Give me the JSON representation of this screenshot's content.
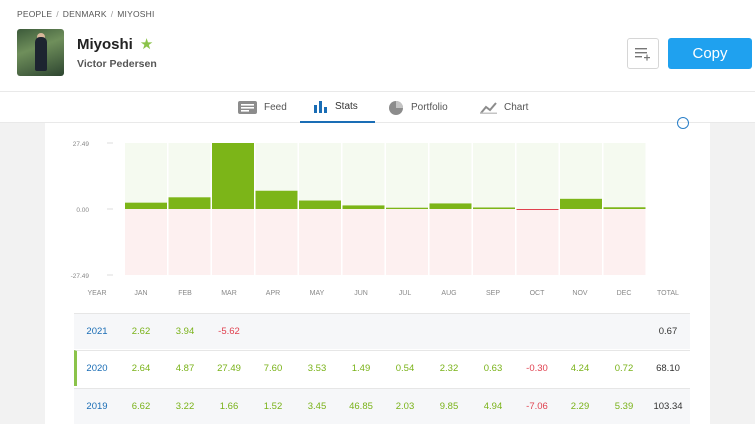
{
  "breadcrumb": [
    "PEOPLE",
    "DENMARK",
    "MIYOSHI"
  ],
  "profile": {
    "username": "Miyoshi",
    "full_name": "Victor Pedersen",
    "avatar_icon": "user-photo",
    "star_icon": "star-icon"
  },
  "actions": {
    "watchlist_icon": "add-to-list-icon",
    "copy_label": "Copy"
  },
  "tabs": [
    {
      "label": "Feed",
      "icon": "feed-icon",
      "active": false
    },
    {
      "label": "Stats",
      "icon": "bar-chart-icon",
      "active": true
    },
    {
      "label": "Portfolio",
      "icon": "pie-chart-icon",
      "active": false
    },
    {
      "label": "Chart",
      "icon": "line-chart-icon",
      "active": false
    }
  ],
  "chart_data": {
    "type": "bar",
    "categories": [
      "JAN",
      "FEB",
      "MAR",
      "APR",
      "MAY",
      "JUN",
      "JUL",
      "AUG",
      "SEP",
      "OCT",
      "NOV",
      "DEC"
    ],
    "values": [
      2.64,
      4.87,
      27.49,
      7.6,
      3.53,
      1.49,
      0.54,
      2.32,
      0.63,
      -0.3,
      4.24,
      0.72
    ],
    "ylim": [
      -27.49,
      27.49
    ],
    "yticks": [
      "27.49",
      "0.00",
      "-27.49"
    ],
    "colors": {
      "positive": "#7cb518",
      "negative": "#e0414f",
      "pos_bg": "#f5faf0",
      "neg_bg": "#fdf0f0"
    }
  },
  "table": {
    "headers": [
      "YEAR",
      "JAN",
      "FEB",
      "MAR",
      "APR",
      "MAY",
      "JUN",
      "JUL",
      "AUG",
      "SEP",
      "OCT",
      "NOV",
      "DEC",
      "TOTAL"
    ],
    "rows": [
      {
        "year": "2021",
        "values": [
          "2.62",
          "3.94",
          "-5.62",
          "",
          "",
          "",
          "",
          "",
          "",
          "",
          "",
          ""
        ],
        "total": "0.67"
      },
      {
        "year": "2020",
        "values": [
          "2.64",
          "4.87",
          "27.49",
          "7.60",
          "3.53",
          "1.49",
          "0.54",
          "2.32",
          "0.63",
          "-0.30",
          "4.24",
          "0.72"
        ],
        "total": "68.10"
      },
      {
        "year": "2019",
        "values": [
          "6.62",
          "3.22",
          "1.66",
          "1.52",
          "3.45",
          "46.85",
          "2.03",
          "9.85",
          "4.94",
          "-7.06",
          "2.29",
          "5.39"
        ],
        "total": "103.34"
      }
    ]
  }
}
